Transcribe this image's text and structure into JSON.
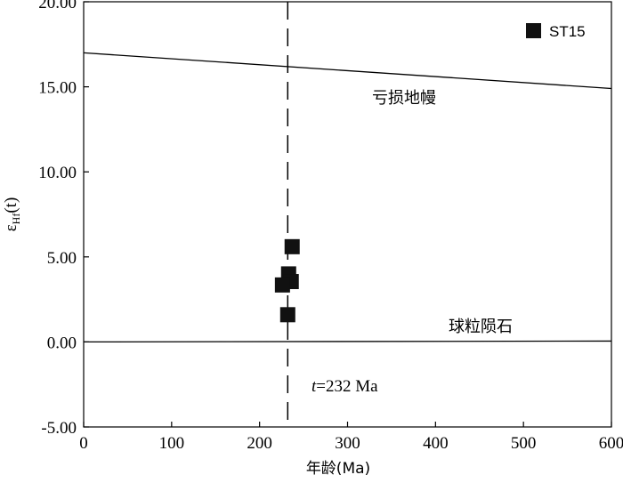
{
  "chart_data": {
    "type": "scatter",
    "xlabel": "年龄(Ma)",
    "ylabel": {
      "main": "ε",
      "sub": "Hf",
      "tail": "(t)"
    },
    "xlim": [
      0,
      600
    ],
    "ylim": [
      -5,
      20
    ],
    "x_ticks": [
      "0",
      "100",
      "200",
      "300",
      "400",
      "500",
      "600"
    ],
    "x_tick_values": [
      0,
      100,
      200,
      300,
      400,
      500,
      600
    ],
    "y_ticks": [
      "20.00",
      "15.00",
      "10.00",
      "5.00",
      "0.00",
      "-5.00"
    ],
    "y_tick_values": [
      20,
      15,
      10,
      5,
      0,
      -5
    ],
    "grid": false,
    "legend_position": "top-right",
    "series": [
      {
        "name": "ST15",
        "marker": "square",
        "color": "#111111",
        "points": [
          {
            "x": 237,
            "y": 5.6
          },
          {
            "x": 233,
            "y": 4.0
          },
          {
            "x": 236,
            "y": 3.55
          },
          {
            "x": 226,
            "y": 3.35
          },
          {
            "x": 232,
            "y": 1.6
          }
        ]
      }
    ],
    "reference_lines": [
      {
        "label": "亏损地幔",
        "from": [
          0,
          17.0
        ],
        "to": [
          600,
          14.9
        ]
      },
      {
        "label": "球粒陨石",
        "from": [
          0,
          0.0
        ],
        "to": [
          600,
          0.05
        ]
      }
    ],
    "vertical_line": {
      "x": 232,
      "style": "dashed"
    },
    "annotation": {
      "italic": "t",
      "rest": "=232 Ma"
    }
  }
}
